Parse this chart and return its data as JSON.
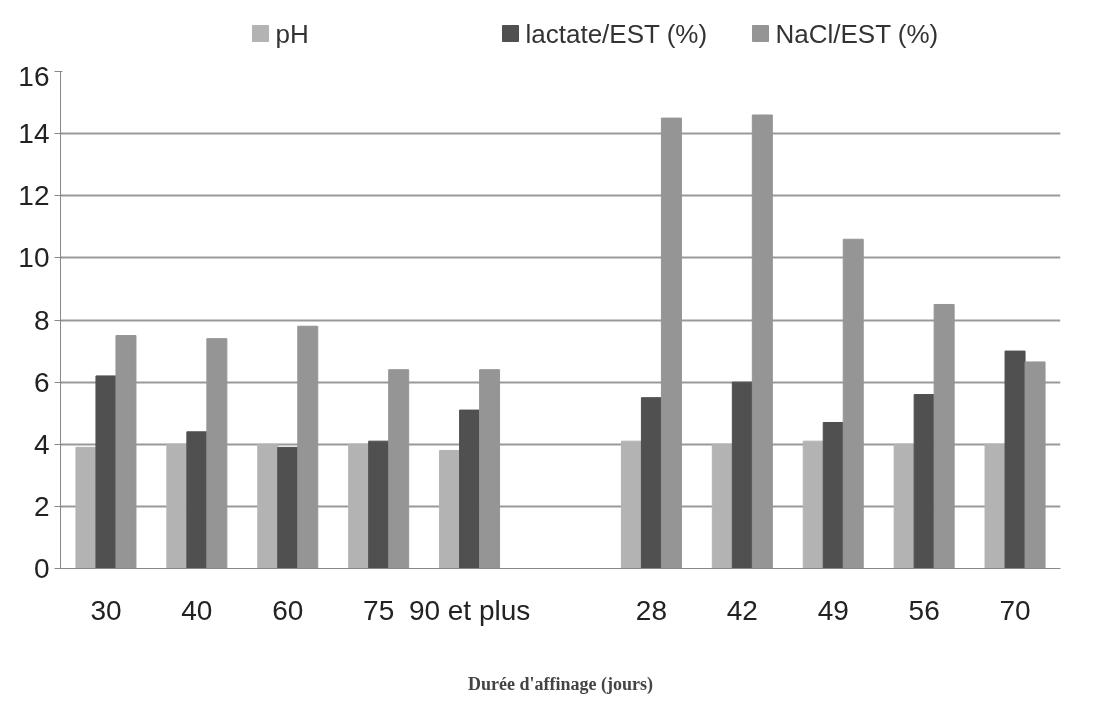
{
  "chart_data": {
    "type": "bar",
    "xlabel": "Durée d'affinage (jours)",
    "categories": [
      "30",
      "40",
      "60",
      "75",
      "90 et plus",
      null,
      "28",
      "42",
      "49",
      "56",
      "70"
    ],
    "series": [
      {
        "name": "pH",
        "color": "#b3b3b3",
        "values": [
          3.9,
          4.0,
          4.0,
          4.0,
          3.8,
          null,
          4.1,
          4.0,
          4.1,
          4.0,
          4.0
        ]
      },
      {
        "name": "lactate/EST (%)",
        "color": "#505050",
        "values": [
          6.2,
          4.4,
          3.9,
          4.1,
          5.1,
          null,
          5.5,
          6.0,
          4.7,
          5.6,
          7.0
        ]
      },
      {
        "name": "NaCl/EST (%)",
        "color": "#959595",
        "values": [
          7.5,
          7.4,
          7.8,
          6.4,
          6.4,
          null,
          14.5,
          14.6,
          10.6,
          8.5,
          6.65
        ]
      }
    ],
    "ylim": [
      0,
      16
    ],
    "yticks": [
      0,
      2,
      4,
      6,
      8,
      10,
      12,
      14,
      16
    ],
    "grid": "y",
    "legend": "top"
  }
}
